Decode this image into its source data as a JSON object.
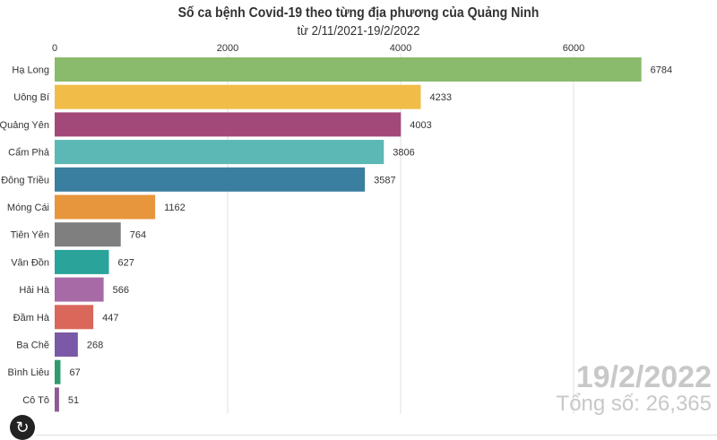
{
  "chart_data": {
    "type": "bar",
    "orientation": "horizontal",
    "title": "Số ca bệnh Covid-19 theo từng địa phương của Quảng Ninh",
    "subtitle": "từ 2/11/2021-19/2/2022",
    "xlim": [
      0,
      7000
    ],
    "ticks": [
      "0",
      "2000",
      "4000",
      "6000"
    ],
    "categories": [
      "Hạ Long",
      "Uông Bí",
      "Quảng Yên",
      "Cẩm Phả",
      "Đông Triều",
      "Móng Cái",
      "Tiên Yên",
      "Vân Đồn",
      "Hải Hà",
      "Đầm Hà",
      "Ba Chẽ",
      "Bình Liêu",
      "Cô Tô"
    ],
    "values": [
      6784,
      4233,
      4003,
      3806,
      3587,
      1162,
      764,
      627,
      566,
      447,
      268,
      67,
      51
    ],
    "colors": [
      "#8aba6b",
      "#f1bd48",
      "#a3497a",
      "#5bb8b4",
      "#3a7ea0",
      "#e8963c",
      "#7f7f7f",
      "#2aa39a",
      "#a86aa6",
      "#d9675a",
      "#7a5aa6",
      "#2e9b6c",
      "#8e5a93"
    ],
    "grid": true,
    "date": "19/2/2022",
    "total": "Tổng số: 26,365"
  },
  "controls": {
    "replay_icon": "↻"
  }
}
